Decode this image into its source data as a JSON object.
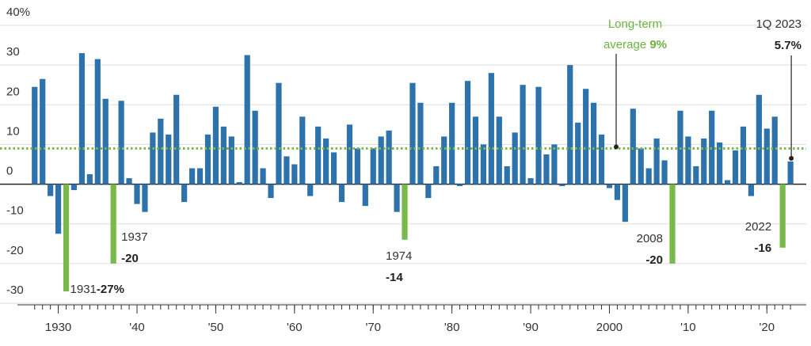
{
  "chart_data": {
    "type": "bar",
    "categories": [
      1927,
      1928,
      1929,
      1930,
      1931,
      1932,
      1933,
      1934,
      1935,
      1936,
      1937,
      1938,
      1939,
      1940,
      1941,
      1942,
      1943,
      1944,
      1945,
      1946,
      1947,
      1948,
      1949,
      1950,
      1951,
      1952,
      1953,
      1954,
      1955,
      1956,
      1957,
      1958,
      1959,
      1960,
      1961,
      1962,
      1963,
      1964,
      1965,
      1966,
      1967,
      1968,
      1969,
      1970,
      1971,
      1972,
      1973,
      1974,
      1975,
      1976,
      1977,
      1978,
      1979,
      1980,
      1981,
      1982,
      1983,
      1984,
      1985,
      1986,
      1987,
      1988,
      1989,
      1990,
      1991,
      1992,
      1993,
      1994,
      1995,
      1996,
      1997,
      1998,
      1999,
      2000,
      2001,
      2002,
      2003,
      2004,
      2005,
      2006,
      2007,
      2008,
      2009,
      2010,
      2011,
      2012,
      2013,
      2014,
      2015,
      2016,
      2017,
      2018,
      2019,
      2020,
      2021,
      2022,
      2023
    ],
    "values": [
      24.5,
      26.5,
      -3,
      -12.5,
      -27,
      -1.5,
      33,
      2.5,
      31.5,
      21.5,
      -20,
      21,
      1.5,
      -5,
      -7,
      13,
      16.5,
      12.5,
      22.5,
      -4.5,
      4,
      4,
      12.5,
      19.5,
      14.5,
      12,
      0.5,
      32.5,
      18.5,
      4,
      -3.5,
      25.5,
      7,
      5,
      17,
      -3,
      14.5,
      11.5,
      8,
      -4.5,
      15,
      9,
      -5.5,
      9,
      12,
      13.5,
      -7,
      -14,
      25.5,
      20.5,
      -3.5,
      4.5,
      12,
      20.5,
      -0.5,
      26,
      17,
      10,
      28,
      17,
      4.5,
      13,
      25,
      1.5,
      24.5,
      7.5,
      10,
      -0.5,
      30,
      15.5,
      24,
      20.5,
      12.5,
      -1,
      -4,
      -9.5,
      19,
      9,
      4,
      11.5,
      6,
      -20,
      18.5,
      12,
      4.5,
      11.5,
      18.5,
      10.5,
      1,
      8.5,
      14.5,
      -3,
      22.5,
      14,
      17,
      -16,
      5.7
    ],
    "color": "#2e72ab",
    "highlight_color": "#79b84a",
    "highlights": [
      {
        "x": 1931,
        "value_label": "-27%"
      },
      {
        "x": 1937,
        "value_label": "-20"
      },
      {
        "x": 1974,
        "value_label": "-14"
      },
      {
        "x": 2008,
        "value_label": "-20"
      },
      {
        "x": 2022,
        "value_label": "-16"
      }
    ],
    "latest": {
      "label": "1Q 2023",
      "value_label": "5.7%"
    },
    "average": 9,
    "average_label": [
      "Long-term",
      "average"
    ],
    "average_value_label": "9%",
    "xlim": [
      1923,
      2025
    ],
    "xticks": [
      {
        "value": 1930,
        "label": "1930"
      },
      {
        "value": 1940,
        "label": "'40"
      },
      {
        "value": 1950,
        "label": "'50"
      },
      {
        "value": 1960,
        "label": "'60"
      },
      {
        "value": 1970,
        "label": "'70"
      },
      {
        "value": 1980,
        "label": "'80"
      },
      {
        "value": 1990,
        "label": "'90"
      },
      {
        "value": 2000,
        "label": "2000"
      },
      {
        "value": 2010,
        "label": "'10"
      },
      {
        "value": 2020,
        "label": "'20"
      }
    ],
    "ylim": [
      -30,
      40
    ],
    "yticks": [
      {
        "value": 40,
        "label": "40%"
      },
      30,
      20,
      10,
      0,
      -10,
      -20,
      -30
    ],
    "grid": true
  }
}
